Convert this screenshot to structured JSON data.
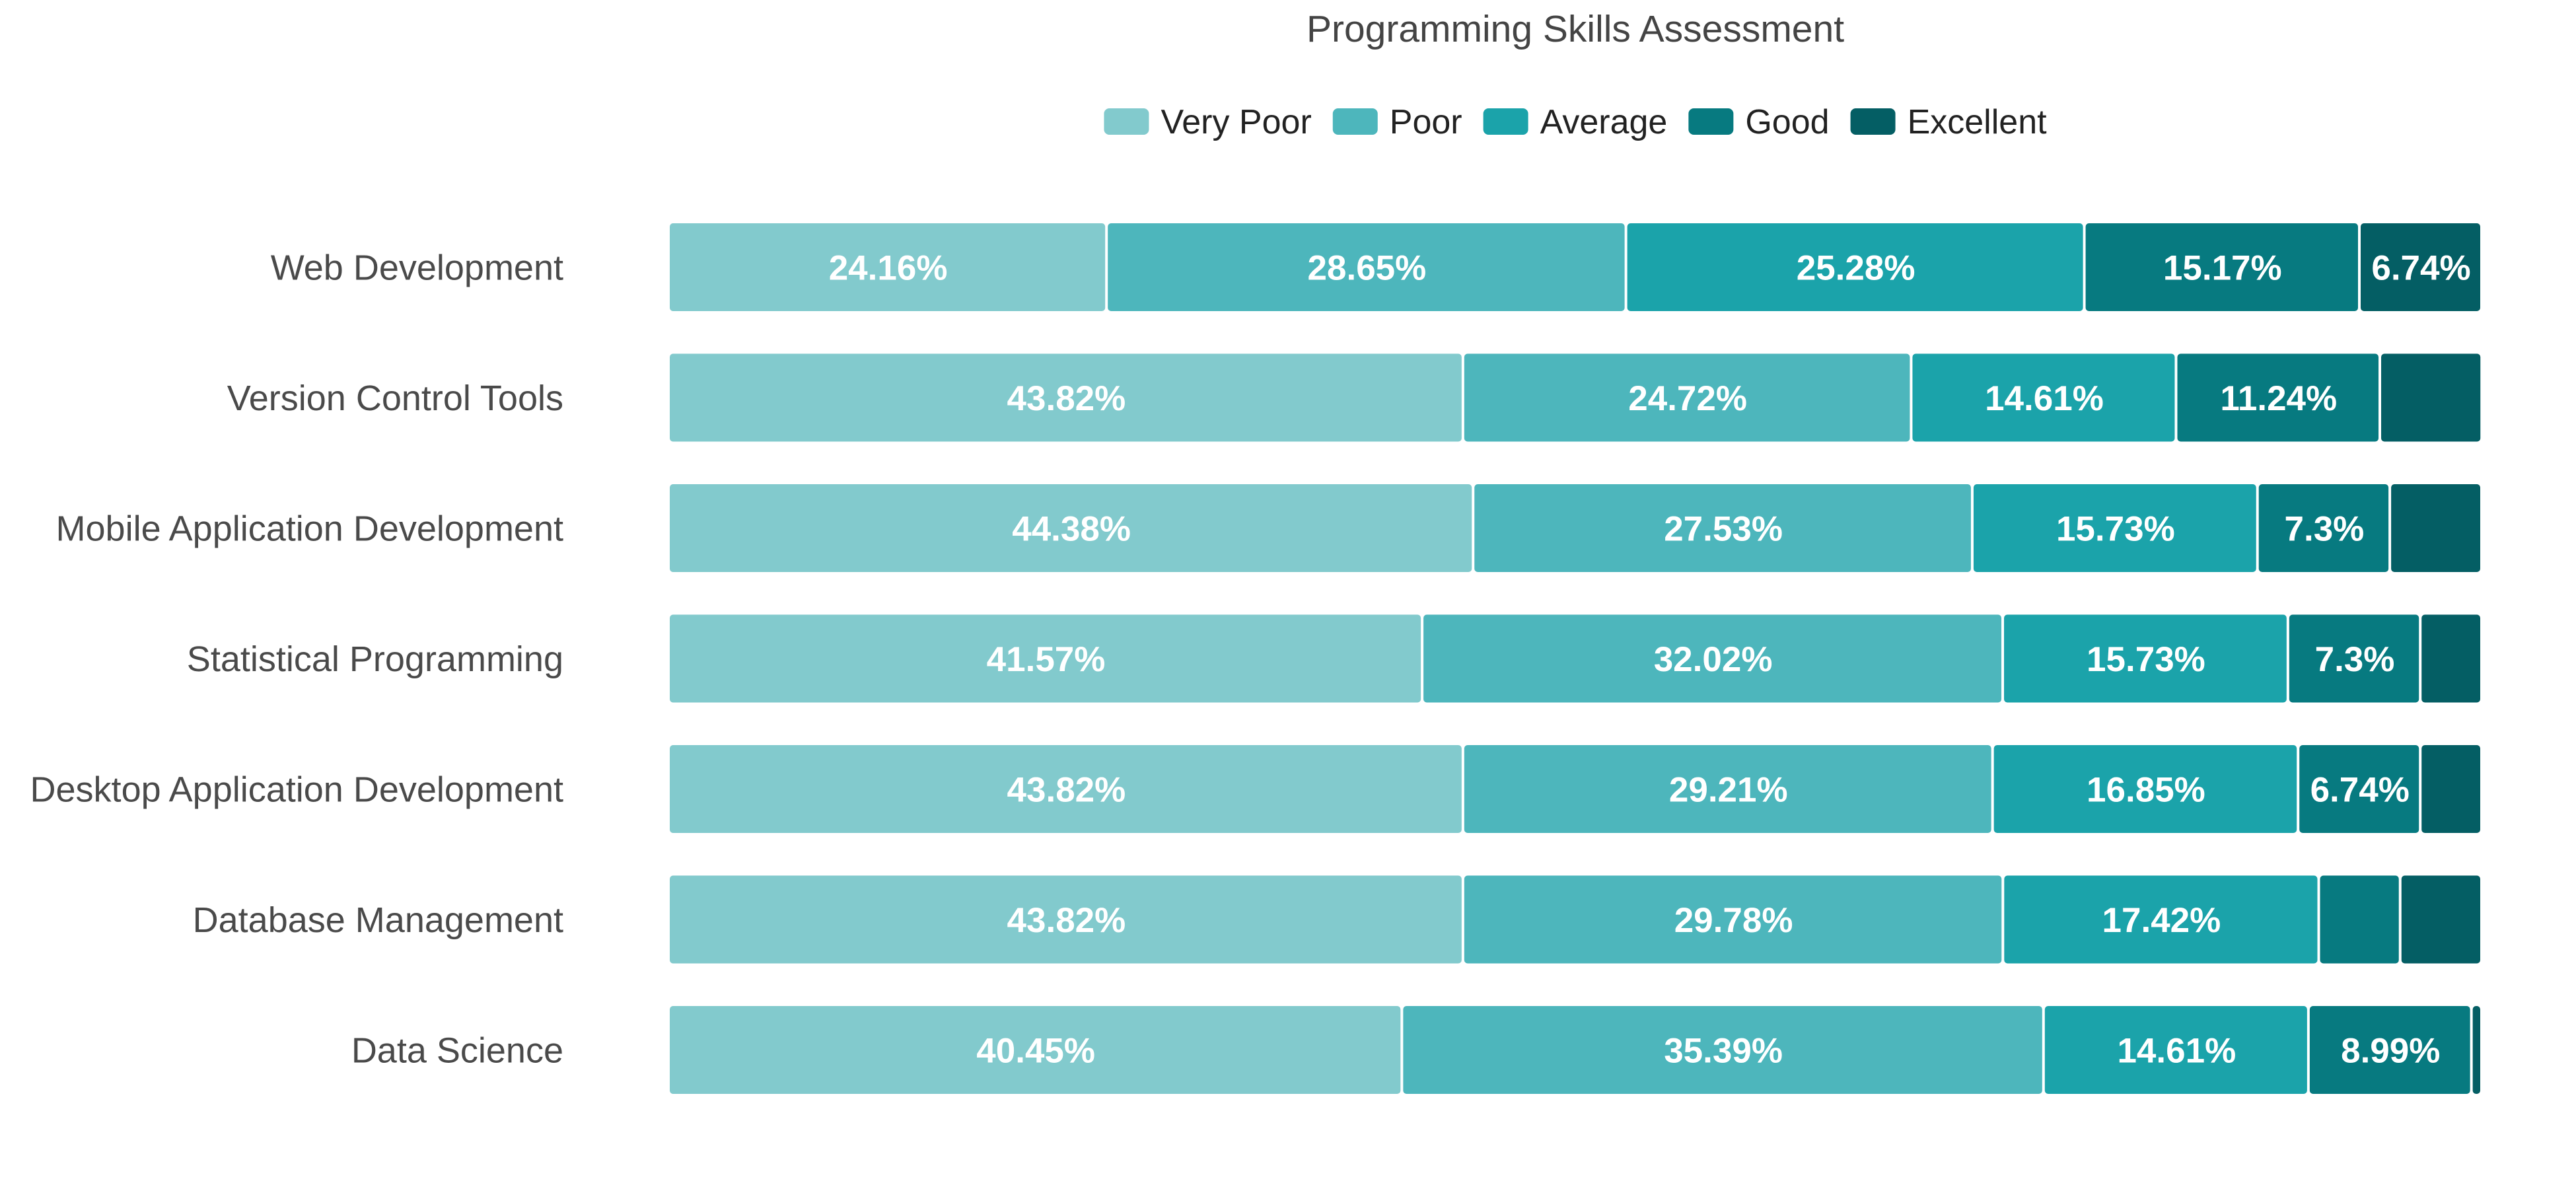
{
  "chart_data": {
    "type": "bar",
    "orientation": "horizontal",
    "stacked": true,
    "title": "Programming Skills Assessment",
    "legend_position": "top",
    "grid": false,
    "categories": [
      "Web Development",
      "Version Control Tools",
      "Mobile Application Development",
      "Statistical Programming",
      "Desktop Application Development ",
      "Database Management",
      "Data Science"
    ],
    "series": [
      {
        "name": "Very Poor",
        "color": "#82CACD",
        "values": [
          24.16,
          43.82,
          44.38,
          41.57,
          43.82,
          43.82,
          40.45
        ],
        "labels": [
          "24.16%",
          "43.82%",
          "44.38%",
          "41.57%",
          "43.82%",
          "43.82%",
          "40.45%"
        ]
      },
      {
        "name": "Poor",
        "color": "#4DB6BC",
        "values": [
          28.65,
          24.72,
          27.53,
          32.02,
          29.21,
          29.78,
          35.39
        ],
        "labels": [
          "28.65%",
          "24.72%",
          "27.53%",
          "32.02%",
          "29.21%",
          "29.78%",
          "35.39%"
        ]
      },
      {
        "name": "Average",
        "color": "#1BA3AA",
        "values": [
          25.28,
          14.61,
          15.73,
          15.73,
          16.85,
          17.42,
          14.61
        ],
        "labels": [
          "25.28%",
          "14.61%",
          "15.73%",
          "15.73%",
          "16.85%",
          "17.42%",
          "14.61%"
        ]
      },
      {
        "name": "Good",
        "color": "#077A80",
        "values": [
          15.17,
          11.24,
          7.3,
          7.3,
          6.74,
          4.49,
          8.99
        ],
        "labels": [
          "15.17%",
          "11.24%",
          "7.3%",
          "7.3%",
          "6.74%",
          "",
          "8.99%"
        ]
      },
      {
        "name": "Excellent",
        "color": "#045E64",
        "values": [
          6.74,
          5.62,
          5.06,
          3.38,
          3.38,
          4.49,
          0.56
        ],
        "labels": [
          "6.74%",
          "",
          "",
          "",
          "",
          "",
          ""
        ]
      }
    ],
    "xlim": [
      0,
      100
    ]
  }
}
